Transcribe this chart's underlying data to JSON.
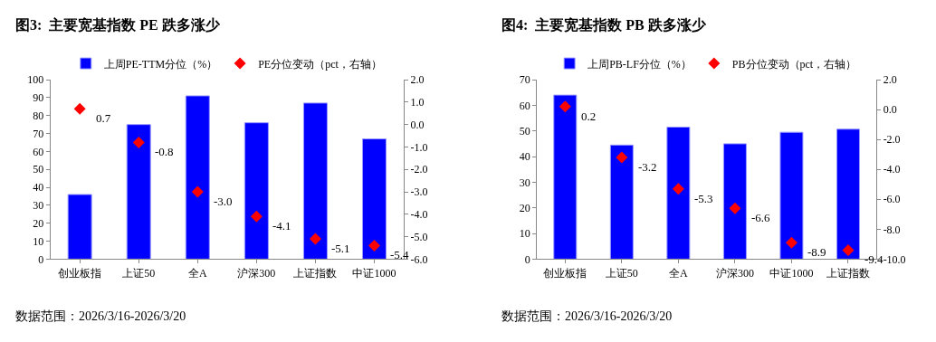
{
  "chart_data": [
    {
      "type": "bar",
      "title": "图3:  主要宽基指数 PE 跌多涨少",
      "categories": [
        "创业板指",
        "上证50",
        "全A",
        "沪深300",
        "上证指数",
        "中证1000"
      ],
      "series": [
        {
          "name": "上周PE-TTM分位（%）",
          "color": "#0000ff",
          "values": [
            36,
            75,
            91,
            76,
            87,
            67
          ]
        },
        {
          "name": "PE分位变动（pct，右轴）",
          "type": "scatter",
          "axis": "y2",
          "color": "#ff0000",
          "marker": "diamond",
          "values": [
            0.7,
            -0.8,
            -3.0,
            -4.1,
            -5.1,
            -5.4
          ],
          "value_labels": [
            "0.7",
            "-0.8",
            "-3.0",
            "-4.1",
            "-5.1",
            "-5.4"
          ]
        }
      ],
      "ylim": [
        0,
        100
      ],
      "yticks": [
        0,
        10,
        20,
        30,
        40,
        50,
        60,
        70,
        80,
        90,
        100
      ],
      "y2lim": [
        -6,
        2
      ],
      "y2ticks": [
        {
          "value": -6,
          "label": "-6.0"
        },
        {
          "value": -5,
          "label": "-5.0"
        },
        {
          "value": -4,
          "label": "-4.0"
        },
        {
          "value": -3,
          "label": "-3.0"
        },
        {
          "value": -2,
          "label": "-2.0"
        },
        {
          "value": -1,
          "label": "-1.0"
        },
        {
          "value": 0,
          "label": "0.0"
        },
        {
          "value": 1,
          "label": "1.0"
        },
        {
          "value": 2,
          "label": "2.0"
        }
      ],
      "legend": "top",
      "annotations": [
        "数据范围：2026/3/16-2026/3/20"
      ]
    },
    {
      "type": "bar",
      "title": "图4:  主要宽基指数 PB 跌多涨少",
      "categories": [
        "创业板指",
        "上证50",
        "全A",
        "沪深300",
        "中证1000",
        "上证指数"
      ],
      "series": [
        {
          "name": "上周PB-LF分位（%）",
          "color": "#0000ff",
          "values": [
            64,
            44.5,
            51.5,
            45,
            49.5,
            50.7
          ]
        },
        {
          "name": "PB分位变动（pct，右轴）",
          "type": "scatter",
          "axis": "y2",
          "color": "#ff0000",
          "marker": "diamond",
          "values": [
            0.2,
            -3.2,
            -5.3,
            -6.6,
            -8.9,
            -9.4
          ],
          "value_labels": [
            "0.2",
            "-3.2",
            "-5.3",
            "-6.6",
            "-8.9",
            "-9.4"
          ]
        }
      ],
      "ylim": [
        0,
        70
      ],
      "yticks": [
        0,
        10,
        20,
        30,
        40,
        50,
        60,
        70
      ],
      "y2lim": [
        -10,
        2
      ],
      "y2ticks": [
        {
          "value": -10,
          "label": "-10.0"
        },
        {
          "value": -8,
          "label": "-8.0"
        },
        {
          "value": -6,
          "label": "-6.0"
        },
        {
          "value": -4,
          "label": "-4.0"
        },
        {
          "value": -2,
          "label": "-2.0"
        },
        {
          "value": 0,
          "label": "0.0"
        },
        {
          "value": 2,
          "label": "2.0"
        }
      ],
      "legend": "top",
      "annotations": [
        "数据范围：2026/3/16-2026/3/20"
      ]
    }
  ]
}
